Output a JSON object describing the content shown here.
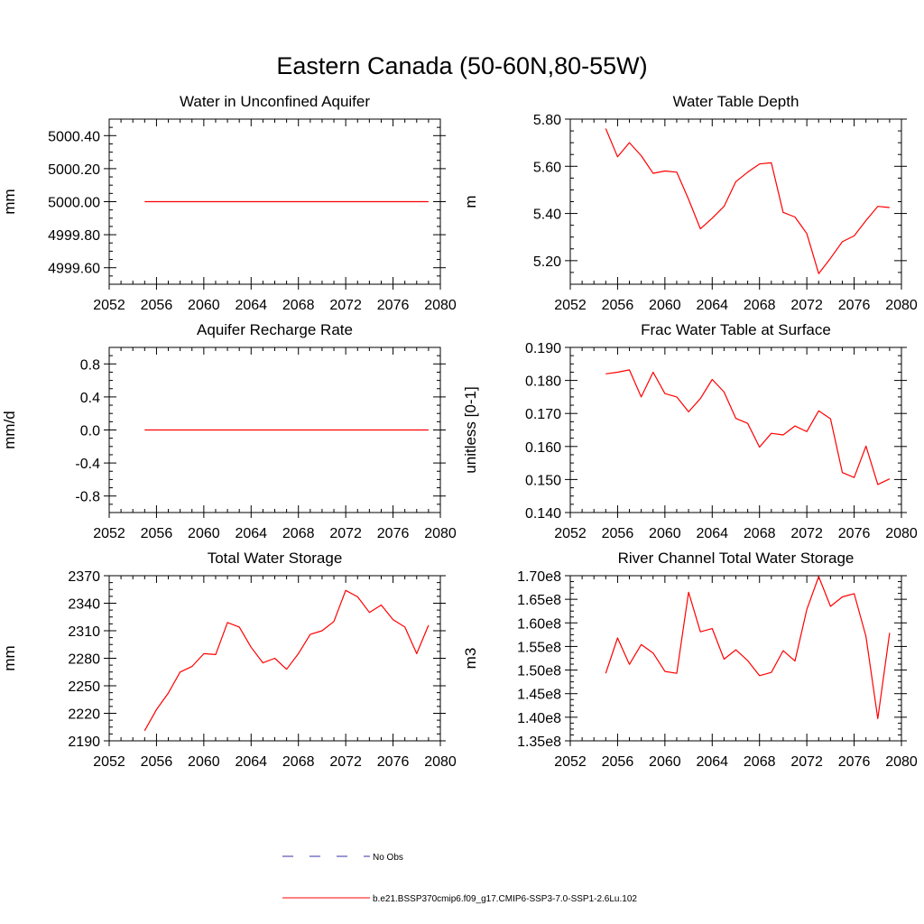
{
  "figure_title": "Eastern Canada (50-60N,80-55W)",
  "colors": {
    "model": "#ff0000",
    "obs": "#3333aa",
    "axis": "#000000"
  },
  "legend": [
    {
      "label": "No Obs",
      "style": "dashed",
      "color": "#3333aa"
    },
    {
      "label": "b.e21.BSSP370cmip6.f09_g17.CMIP6-SSP3-7.0-SSP1-2.6Lu.102",
      "style": "solid",
      "color": "#ff0000"
    }
  ],
  "chart_data": [
    {
      "type": "line",
      "title": "Water in Unconfined Aquifer",
      "ylabel": "mm",
      "xlim": [
        2052,
        2080
      ],
      "ylim": [
        4999.5,
        5000.5
      ],
      "xticks": [
        2052,
        2056,
        2060,
        2064,
        2068,
        2072,
        2076,
        2080
      ],
      "xtick_labels": [
        "2052",
        "2056",
        "2060",
        "2064",
        "2068",
        "2072",
        "2076",
        "2080"
      ],
      "yticks": [
        4999.6,
        4999.8,
        5000.0,
        5000.2,
        5000.4
      ],
      "ytick_labels": [
        "4999.60",
        "4999.80",
        "5000.00",
        "5000.20",
        "5000.40"
      ],
      "x": [
        2055,
        2056,
        2057,
        2058,
        2059,
        2060,
        2061,
        2062,
        2063,
        2064,
        2065,
        2066,
        2067,
        2068,
        2069,
        2070,
        2071,
        2072,
        2073,
        2074,
        2075,
        2076,
        2077,
        2078,
        2079
      ],
      "values": [
        5000,
        5000,
        5000,
        5000,
        5000,
        5000,
        5000,
        5000,
        5000,
        5000,
        5000,
        5000,
        5000,
        5000,
        5000,
        5000,
        5000,
        5000,
        5000,
        5000,
        5000,
        5000,
        5000,
        5000,
        5000
      ]
    },
    {
      "type": "line",
      "title": "Water Table Depth",
      "ylabel": "m",
      "xlim": [
        2052,
        2080
      ],
      "ylim": [
        5.1,
        5.8
      ],
      "xticks": [
        2052,
        2056,
        2060,
        2064,
        2068,
        2072,
        2076,
        2080
      ],
      "xtick_labels": [
        "2052",
        "2056",
        "2060",
        "2064",
        "2068",
        "2072",
        "2076",
        "2080"
      ],
      "yticks": [
        5.2,
        5.4,
        5.6,
        5.8
      ],
      "ytick_labels": [
        "5.20",
        "5.40",
        "5.60",
        "5.80"
      ],
      "x": [
        2055,
        2056,
        2057,
        2058,
        2059,
        2060,
        2061,
        2062,
        2063,
        2064,
        2065,
        2066,
        2067,
        2068,
        2069,
        2070,
        2071,
        2072,
        2073,
        2074,
        2075,
        2076,
        2077,
        2078,
        2079
      ],
      "values": [
        5.76,
        5.64,
        5.7,
        5.645,
        5.57,
        5.58,
        5.575,
        5.46,
        5.335,
        5.38,
        5.43,
        5.535,
        5.575,
        5.61,
        5.615,
        5.405,
        5.385,
        5.315,
        5.145,
        5.21,
        5.28,
        5.305,
        5.37,
        5.43,
        5.425
      ]
    },
    {
      "type": "line",
      "title": "Aquifer Recharge Rate",
      "ylabel": "mm/d",
      "xlim": [
        2052,
        2080
      ],
      "ylim": [
        -1.0,
        1.0
      ],
      "xticks": [
        2052,
        2056,
        2060,
        2064,
        2068,
        2072,
        2076,
        2080
      ],
      "xtick_labels": [
        "2052",
        "2056",
        "2060",
        "2064",
        "2068",
        "2072",
        "2076",
        "2080"
      ],
      "yticks": [
        -0.8,
        -0.4,
        0.0,
        0.4,
        0.8
      ],
      "ytick_labels": [
        "-0.8",
        "-0.4",
        "0.0",
        "0.4",
        "0.8"
      ],
      "x": [
        2055,
        2056,
        2057,
        2058,
        2059,
        2060,
        2061,
        2062,
        2063,
        2064,
        2065,
        2066,
        2067,
        2068,
        2069,
        2070,
        2071,
        2072,
        2073,
        2074,
        2075,
        2076,
        2077,
        2078,
        2079
      ],
      "values": [
        0,
        0,
        0,
        0,
        0,
        0,
        0,
        0,
        0,
        0,
        0,
        0,
        0,
        0,
        0,
        0,
        0,
        0,
        0,
        0,
        0,
        0,
        0,
        0,
        0
      ]
    },
    {
      "type": "line",
      "title": "Frac Water Table at Surface",
      "ylabel": "unitless [0-1]",
      "xlim": [
        2052,
        2080
      ],
      "ylim": [
        0.14,
        0.19
      ],
      "xticks": [
        2052,
        2056,
        2060,
        2064,
        2068,
        2072,
        2076,
        2080
      ],
      "xtick_labels": [
        "2052",
        "2056",
        "2060",
        "2064",
        "2068",
        "2072",
        "2076",
        "2080"
      ],
      "yticks": [
        0.14,
        0.15,
        0.16,
        0.17,
        0.18,
        0.19
      ],
      "ytick_labels": [
        "0.140",
        "0.150",
        "0.160",
        "0.170",
        "0.180",
        "0.190"
      ],
      "x": [
        2055,
        2056,
        2057,
        2058,
        2059,
        2060,
        2061,
        2062,
        2063,
        2064,
        2065,
        2066,
        2067,
        2068,
        2069,
        2070,
        2071,
        2072,
        2073,
        2074,
        2075,
        2076,
        2077,
        2078,
        2079
      ],
      "values": [
        0.182,
        0.1825,
        0.1832,
        0.175,
        0.1825,
        0.176,
        0.175,
        0.1705,
        0.1745,
        0.1803,
        0.1765,
        0.1685,
        0.167,
        0.1598,
        0.164,
        0.1635,
        0.1662,
        0.1645,
        0.1708,
        0.1684,
        0.1521,
        0.1506,
        0.1601,
        0.1485,
        0.1502
      ]
    },
    {
      "type": "line",
      "title": "Total Water Storage",
      "ylabel": "mm",
      "xlim": [
        2052,
        2080
      ],
      "ylim": [
        2190,
        2370
      ],
      "xticks": [
        2052,
        2056,
        2060,
        2064,
        2068,
        2072,
        2076,
        2080
      ],
      "xtick_labels": [
        "2052",
        "2056",
        "2060",
        "2064",
        "2068",
        "2072",
        "2076",
        "2080"
      ],
      "yticks": [
        2190,
        2220,
        2250,
        2280,
        2310,
        2340,
        2370
      ],
      "ytick_labels": [
        "2190",
        "2220",
        "2250",
        "2280",
        "2310",
        "2340",
        "2370"
      ],
      "x": [
        2055,
        2056,
        2057,
        2058,
        2059,
        2060,
        2061,
        2062,
        2063,
        2064,
        2065,
        2066,
        2067,
        2068,
        2069,
        2070,
        2071,
        2072,
        2073,
        2074,
        2075,
        2076,
        2077,
        2078,
        2079
      ],
      "values": [
        2201,
        2224,
        2242,
        2265,
        2271,
        2285,
        2284,
        2319,
        2314,
        2292,
        2275,
        2280,
        2268,
        2285,
        2306,
        2310,
        2320,
        2354,
        2347,
        2330,
        2338,
        2322,
        2314,
        2285,
        2316
      ]
    },
    {
      "type": "line",
      "title": "River Channel Total Water Storage",
      "ylabel": "m3",
      "xlim": [
        2052,
        2080
      ],
      "ylim": [
        135000000,
        170000000
      ],
      "xticks": [
        2052,
        2056,
        2060,
        2064,
        2068,
        2072,
        2076,
        2080
      ],
      "xtick_labels": [
        "2052",
        "2056",
        "2060",
        "2064",
        "2068",
        "2072",
        "2076",
        "2080"
      ],
      "yticks": [
        135000000,
        140000000,
        145000000,
        150000000,
        155000000,
        160000000,
        165000000,
        170000000
      ],
      "ytick_labels": [
        "1.35e8",
        "1.40e8",
        "1.45e8",
        "1.50e8",
        "1.55e8",
        "1.60e8",
        "1.65e8",
        "1.70e8"
      ],
      "x": [
        2055,
        2056,
        2057,
        2058,
        2059,
        2060,
        2061,
        2062,
        2063,
        2064,
        2065,
        2066,
        2067,
        2068,
        2069,
        2070,
        2071,
        2072,
        2073,
        2074,
        2075,
        2076,
        2077,
        2078,
        2079
      ],
      "values": [
        149300000,
        156800000,
        151200000,
        155400000,
        153600000,
        149700000,
        149300000,
        166500000,
        158100000,
        158800000,
        152300000,
        154300000,
        152000000,
        148800000,
        149500000,
        154100000,
        151900000,
        162800000,
        169800000,
        163500000,
        165500000,
        166200000,
        157100000,
        139700000,
        157900000
      ]
    }
  ]
}
